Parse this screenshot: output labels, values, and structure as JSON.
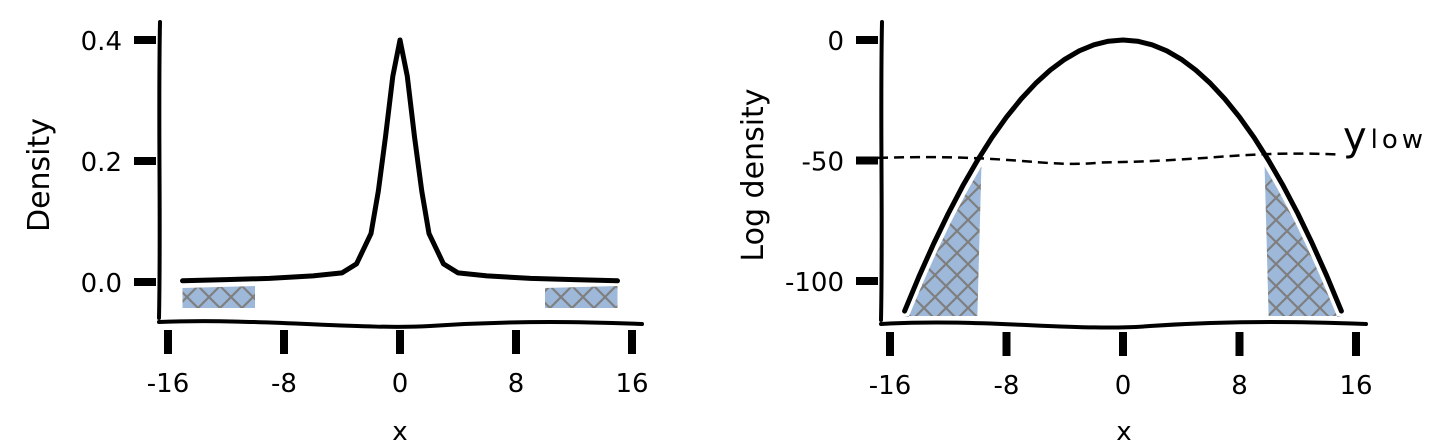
{
  "chart_data": [
    {
      "type": "line",
      "title": "",
      "xlabel": "x",
      "ylabel": "Density",
      "xlim": [
        -16,
        16
      ],
      "ylim": [
        -0.05,
        0.42
      ],
      "xticks": [
        -16,
        -8,
        0,
        8,
        16
      ],
      "xtick_labels": [
        "-16",
        "-8",
        "0",
        "8",
        "16"
      ],
      "yticks": [
        0.0,
        0.2,
        0.4
      ],
      "ytick_labels": [
        "0.0",
        "0.2",
        "0.4"
      ],
      "series": [
        {
          "x": [
            -15,
            -12,
            -9,
            -6,
            -4,
            -3,
            -2,
            -1.5,
            -1,
            -0.5,
            0,
            0.5,
            1,
            1.5,
            2,
            3,
            4,
            6,
            9,
            12,
            15
          ],
          "y": [
            0.002,
            0.004,
            0.006,
            0.01,
            0.015,
            0.03,
            0.08,
            0.15,
            0.24,
            0.34,
            0.4,
            0.34,
            0.24,
            0.15,
            0.08,
            0.03,
            0.015,
            0.01,
            0.006,
            0.004,
            0.002
          ]
        }
      ],
      "shaded_tail_regions": [
        [
          -15,
          -10
        ],
        [
          10,
          15
        ]
      ],
      "grid": false
    },
    {
      "type": "line",
      "title": "",
      "xlabel": "x",
      "ylabel": "Log density",
      "xlim": [
        -16,
        16
      ],
      "ylim": [
        -118,
        2
      ],
      "xticks": [
        -16,
        -8,
        0,
        8,
        16
      ],
      "xtick_labels": [
        "-16",
        "-8",
        "0",
        "8",
        "16"
      ],
      "yticks": [
        0,
        -50,
        -100
      ],
      "ytick_labels": [
        "0",
        "-50",
        "-100"
      ],
      "series": [
        {
          "x": [
            -15,
            -14,
            -13,
            -12,
            -11,
            -10,
            -9,
            -8,
            -7,
            -6,
            -5,
            -4,
            -3,
            -2,
            -1,
            0,
            1,
            2,
            3,
            4,
            5,
            6,
            7,
            8,
            9,
            10,
            11,
            12,
            13,
            14,
            15
          ],
          "y": [
            -112.5,
            -98,
            -84.5,
            -72,
            -60.5,
            -50,
            -40.5,
            -32,
            -24.5,
            -18,
            -12.5,
            -8,
            -4.5,
            -2,
            -0.5,
            0,
            -0.5,
            -2,
            -4.5,
            -8,
            -12.5,
            -18,
            -24.5,
            -32,
            -40.5,
            -50,
            -60.5,
            -72,
            -84.5,
            -98,
            -112.5
          ]
        }
      ],
      "threshold": {
        "y": -50,
        "label": "y",
        "subscript": "low"
      },
      "shaded_tail_regions": [
        [
          -15,
          -10
        ],
        [
          10,
          15
        ]
      ],
      "grid": false
    }
  ]
}
